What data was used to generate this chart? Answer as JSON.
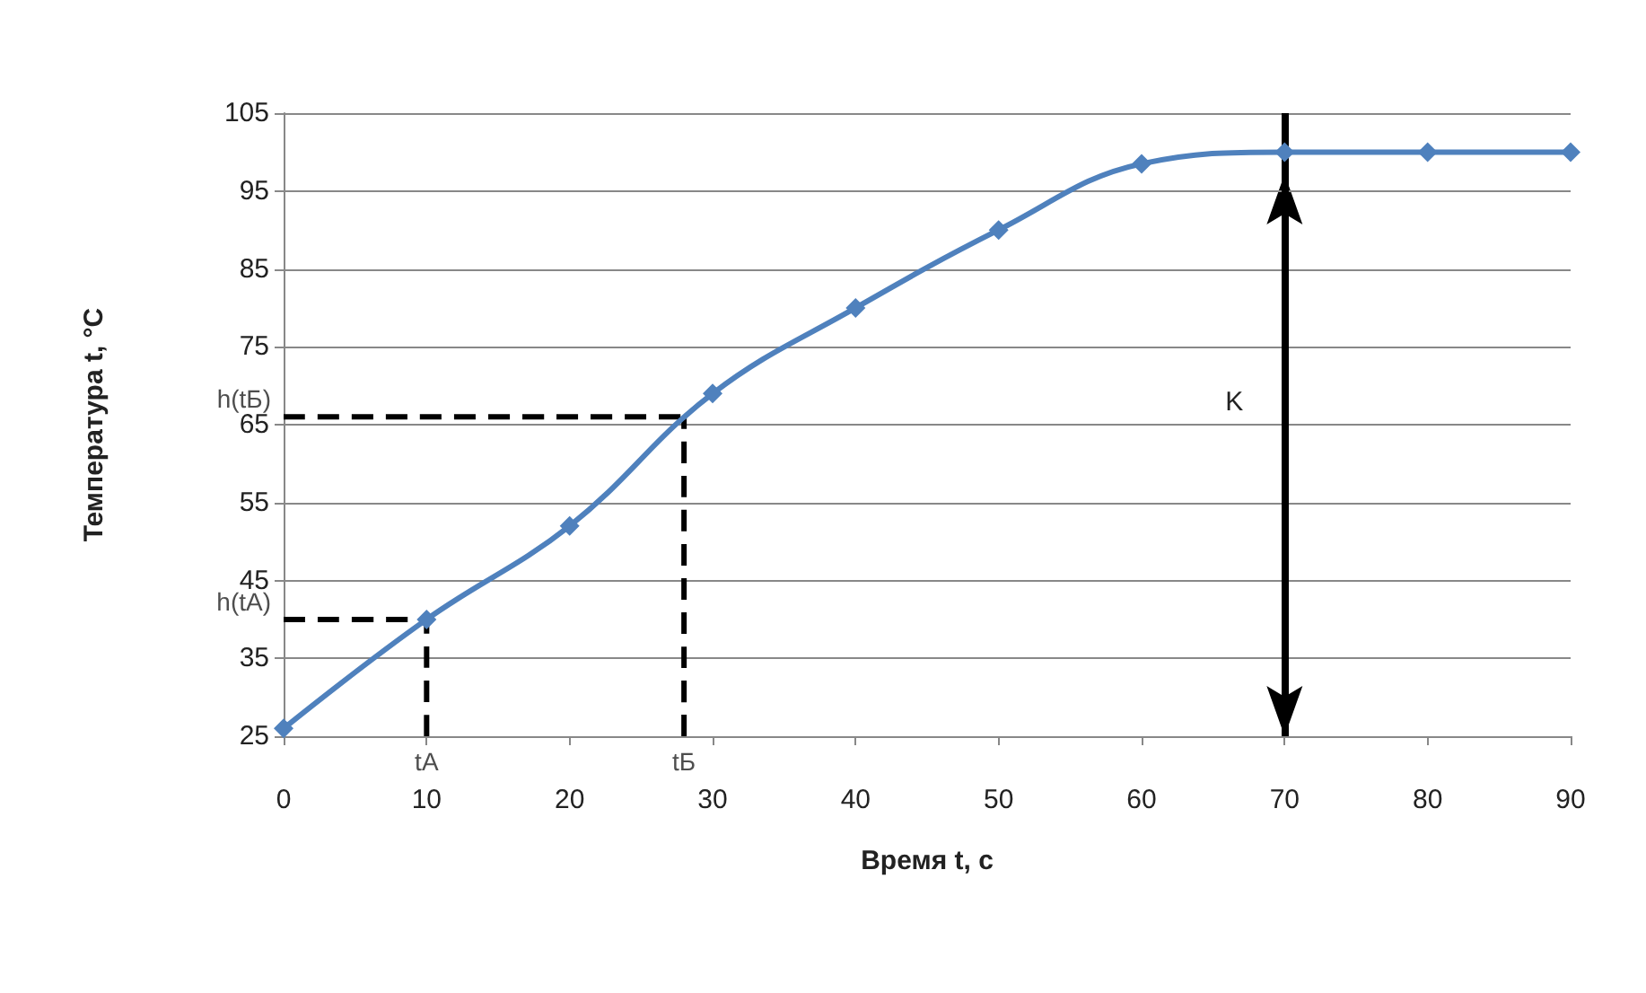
{
  "chart_data": {
    "type": "line",
    "xlabel": "Время t, с",
    "ylabel": "Температура t, °C",
    "x": [
      0,
      10,
      20,
      30,
      40,
      50,
      60,
      70,
      80,
      90
    ],
    "series": [
      {
        "color": "#4f81bd",
        "values": [
          26,
          40,
          52,
          69,
          80,
          90,
          98.5,
          100,
          100,
          100
        ],
        "marker": "diamond",
        "line_style": "solid"
      },
      {
        "name": "h(tA)",
        "color": "#000000",
        "x": [
          0,
          10
        ],
        "values": [
          40,
          40
        ],
        "marker": "none",
        "line_style": "dashed"
      },
      {
        "name": "tA",
        "color": "#000000",
        "x": [
          10,
          10
        ],
        "values": [
          25,
          40
        ],
        "marker": "none",
        "line_style": "dashed"
      },
      {
        "name": "h(tБ)",
        "color": "#000000",
        "x": [
          0,
          28
        ],
        "values": [
          66,
          66
        ],
        "marker": "none",
        "line_style": "dashed"
      },
      {
        "name": "tБ",
        "color": "#000000",
        "x": [
          28,
          28
        ],
        "values": [
          25,
          66
        ],
        "marker": "none",
        "line_style": "dashed"
      }
    ],
    "xlim": [
      0,
      90
    ],
    "xticks": [
      0,
      10,
      20,
      30,
      40,
      50,
      60,
      70,
      80,
      90
    ],
    "ylim": [
      25,
      105
    ],
    "yticks": [
      25,
      35,
      45,
      55,
      65,
      75,
      85,
      95,
      105
    ],
    "grid": "y",
    "legend": false,
    "ref_lines": [
      {
        "axis": "x",
        "value": 70,
        "label": "K",
        "color": "#000000"
      }
    ]
  }
}
